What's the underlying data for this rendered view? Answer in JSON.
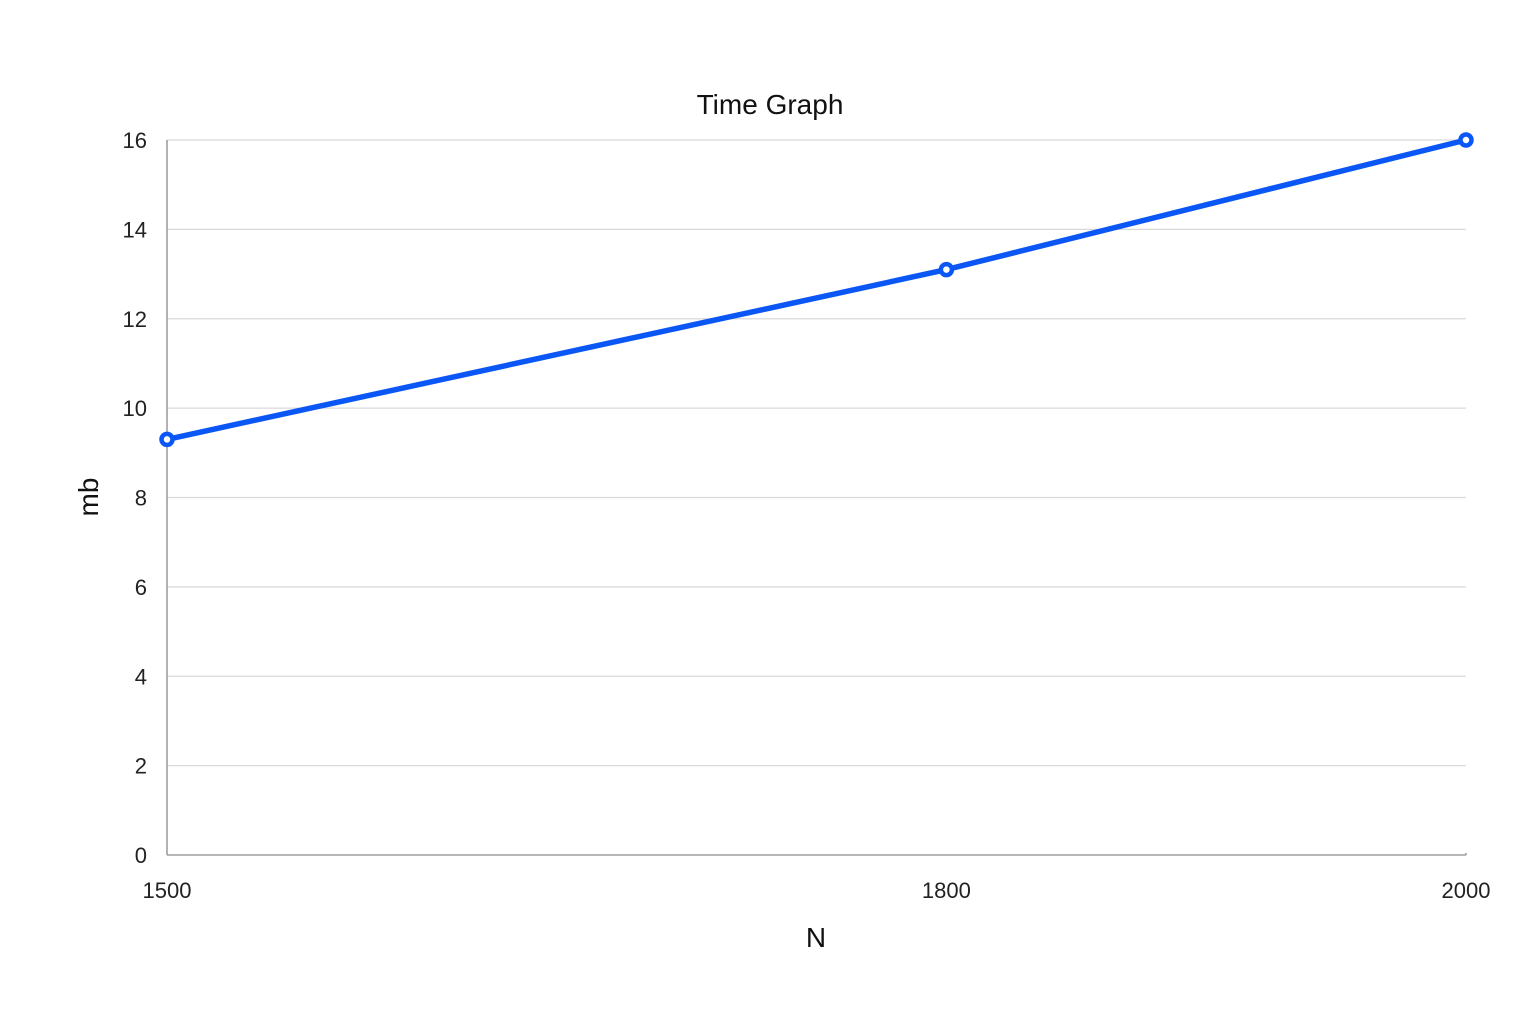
{
  "chart_data": {
    "type": "line",
    "title": "Time Graph",
    "xlabel": "N",
    "ylabel": "mb",
    "categories": [
      "1500",
      "1800",
      "2000"
    ],
    "x": [
      1500,
      1800,
      2000
    ],
    "series": [
      {
        "values": [
          9.3,
          13.1,
          16.0
        ],
        "color": "#0b57f5"
      }
    ],
    "xlim": [
      1500,
      2000
    ],
    "ylim": [
      0,
      16
    ],
    "yticks": [
      0,
      2,
      4,
      6,
      8,
      10,
      12,
      14,
      16
    ],
    "xticks": [
      1500,
      1800,
      2000
    ],
    "grid": true,
    "legend": "none",
    "colors": {
      "gridline": "#d9d9d9",
      "axis": "#9e9e9e",
      "text": "#222222"
    }
  }
}
